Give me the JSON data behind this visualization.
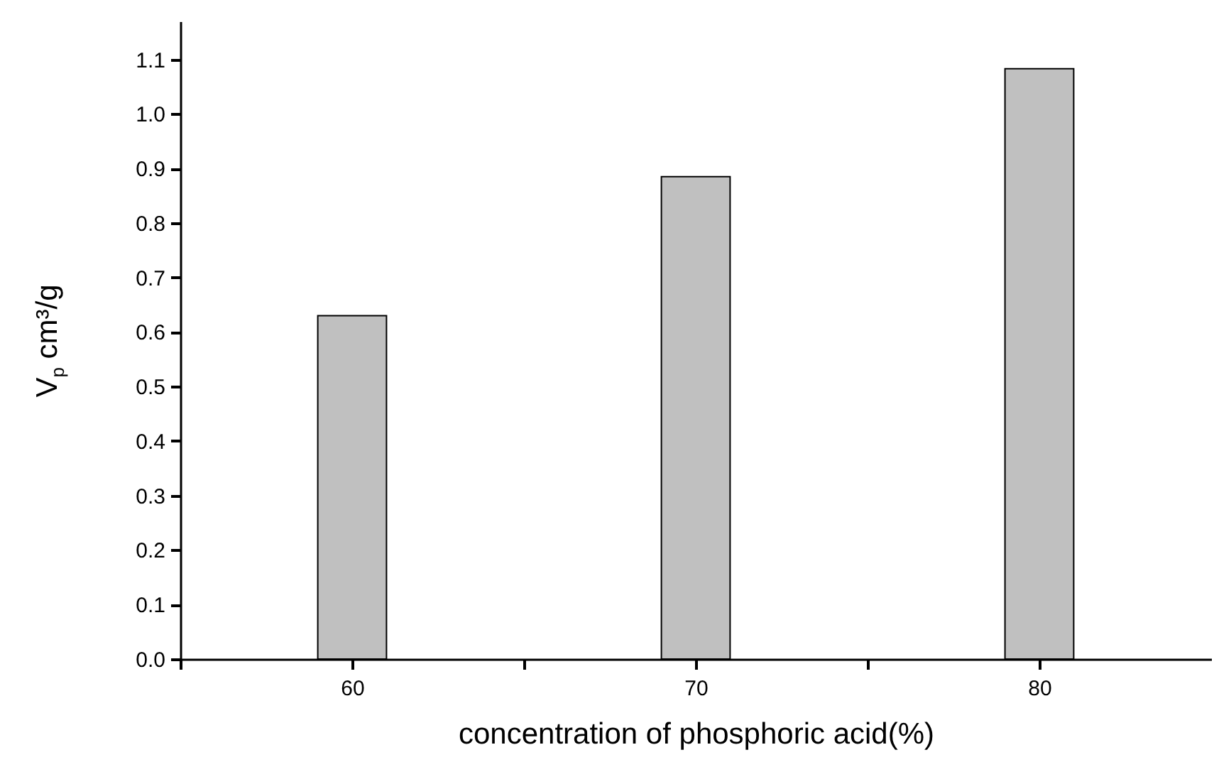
{
  "chart_data": {
    "type": "bar",
    "xlabel": "concentration of phosphoric acid(%)",
    "ylabel": "V$_{p}$ cm³/g",
    "x": [
      60,
      70,
      80
    ],
    "values": [
      0.63,
      0.885,
      1.083
    ],
    "color": "#c0c0c0",
    "xlim": [
      55,
      85
    ],
    "xticks": [
      {
        "value": 55,
        "label": null
      },
      60,
      {
        "value": 65,
        "label": null
      },
      70,
      {
        "value": 75,
        "label": null
      },
      80
    ],
    "ylim": [
      0,
      1.17
    ],
    "yticks": [
      {
        "value": 0,
        "label": "0.0"
      },
      0.1,
      0.2,
      0.3,
      0.4,
      0.5,
      0.6,
      0.7,
      0.8,
      0.9,
      {
        "value": 1,
        "label": "1.0"
      },
      1.1
    ],
    "grid": false
  }
}
